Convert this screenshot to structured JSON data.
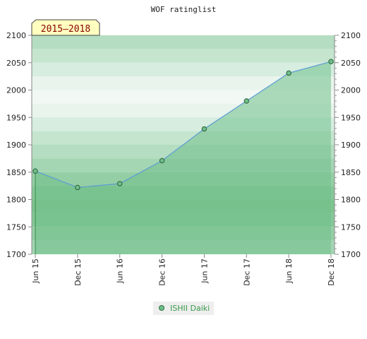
{
  "chart_data": {
    "type": "area",
    "title": "WOF ratinglist",
    "period_badge": "2015–2018",
    "x_ticks": [
      "Jun 15",
      "Dec 15",
      "Jun 16",
      "Dec 16",
      "Jun 17",
      "Dec 17",
      "Jun 18",
      "Dec 18"
    ],
    "y_ticks": [
      2100,
      2050,
      2000,
      1950,
      1900,
      1850,
      1800,
      1750,
      1700
    ],
    "ylim": [
      1700,
      2100
    ],
    "series": [
      {
        "name": "ISHII Daiki",
        "x": [
          "Jun 15",
          "Dec 15",
          "Jun 16",
          "Dec 16",
          "Jun 17",
          "Dec 17",
          "Jun 18",
          "Dec 18"
        ],
        "values": [
          1852,
          1822,
          1829,
          1871,
          1929,
          1980,
          2031,
          2052
        ]
      }
    ],
    "legend_position": "bottom-center",
    "colors": {
      "line": "#5b9bd5",
      "fill": "#6fbf8a",
      "marker": "#3c8c4c",
      "badge_bg": "#ffffc0"
    }
  }
}
